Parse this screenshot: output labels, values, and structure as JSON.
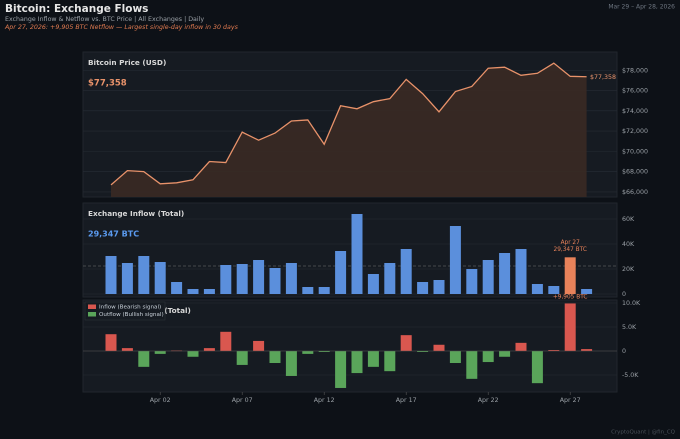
{
  "title": "Bitcoin: Exchange Flows",
  "subtitle": "Exchange Inflow & Netflow vs. BTC Price  |  All Exchanges  |  Daily",
  "annotation": "Apr 27, 2026: +9,905 BTC Netflow — Largest single-day inflow in 30 days",
  "date_range": "Mar 29 – Apr 28, 2026",
  "footer": "CryptoQuant  |  @fin_CQ",
  "chart_data": [
    {
      "type": "area",
      "title": "Bitcoin Price (USD)",
      "current_label": "$77,358",
      "color": "#e8926a",
      "fill": "#3a2a24",
      "values": [
        66700,
        68100,
        68000,
        66800,
        66900,
        67200,
        69000,
        68900,
        71900,
        71100,
        71800,
        73000,
        73100,
        70700,
        74500,
        74200,
        74900,
        75200,
        77100,
        75700,
        73900,
        75900,
        76400,
        78200,
        78300,
        77500,
        77700,
        78700,
        77400,
        77358
      ],
      "ylim": [
        65500,
        79800
      ],
      "yticks": [
        {
          "value": 66000,
          "label": "$66,000"
        },
        {
          "value": 68000,
          "label": "$68,000"
        },
        {
          "value": 70000,
          "label": "$70,000"
        },
        {
          "value": 72000,
          "label": "$72,000"
        },
        {
          "value": 74000,
          "label": "$74,000"
        },
        {
          "value": 76000,
          "label": "$76,000"
        },
        {
          "value": 78000,
          "label": "$78,000"
        }
      ],
      "grid": true
    },
    {
      "type": "bar",
      "title": "Exchange Inflow (Total)",
      "current_label": "29,347 BTC",
      "label_color": "#5b9bf0",
      "color": "#5b8fdc",
      "values": [
        30400,
        24800,
        30400,
        25600,
        9600,
        4000,
        4000,
        23200,
        24000,
        27200,
        20800,
        24800,
        5600,
        5600,
        34400,
        64000,
        16000,
        24800,
        36000,
        9600,
        11200,
        54400,
        20000,
        27200,
        32800,
        36000,
        8000,
        6400,
        29347,
        4000
      ],
      "highlight": {
        "label": "Apr 27",
        "value_label": "29,347 BTC",
        "color": "#e8825a"
      },
      "reference_line": 22400,
      "ylim": [
        -2400,
        72800
      ],
      "yticks": [
        0,
        {
          "value": 20000,
          "label": "20K"
        },
        {
          "value": 40000,
          "label": "40K"
        },
        {
          "value": 60000,
          "label": "60K"
        }
      ],
      "grid": true
    },
    {
      "type": "diverging_bar",
      "title": "Exchange Netflow (Total)",
      "legend": [
        {
          "name": "Inflow (Bearish signal)",
          "color": "#d9574f"
        },
        {
          "name": "Outflow (Bullish signal)",
          "color": "#5aa55a"
        }
      ],
      "categories": [
        null,
        null,
        null,
        "Apr 02",
        null,
        null,
        null,
        null,
        "Apr 07",
        null,
        null,
        null,
        null,
        "Apr 12",
        null,
        null,
        null,
        null,
        "Apr 17",
        null,
        null,
        null,
        null,
        "Apr 22",
        null,
        null,
        null,
        null,
        "Apr 27",
        null
      ],
      "values": [
        3500,
        600,
        -3300,
        -600,
        100,
        -1200,
        600,
        4000,
        -2900,
        2100,
        -2500,
        -5200,
        -600,
        -200,
        -7700,
        -4600,
        -3300,
        -4200,
        3300,
        -200,
        1300,
        -2500,
        -5800,
        -2300,
        -1200,
        1700,
        -6700,
        200,
        9905,
        400
      ],
      "value_labels": [
        null,
        null,
        null,
        null,
        null,
        null,
        null,
        null,
        null,
        null,
        null,
        null,
        null,
        null,
        null,
        null,
        null,
        null,
        null,
        null,
        null,
        null,
        null,
        null,
        null,
        null,
        null,
        null,
        "+9,905 BTC",
        null
      ],
      "label_color": "#e8825a",
      "ylim": [
        -8540,
        10625
      ],
      "yticks": [
        {
          "value": -5000,
          "label": "-5.0K"
        },
        0,
        {
          "value": 5000,
          "label": "5.0K"
        },
        {
          "value": 10000,
          "label": "10.0K"
        }
      ],
      "grid": true
    }
  ]
}
